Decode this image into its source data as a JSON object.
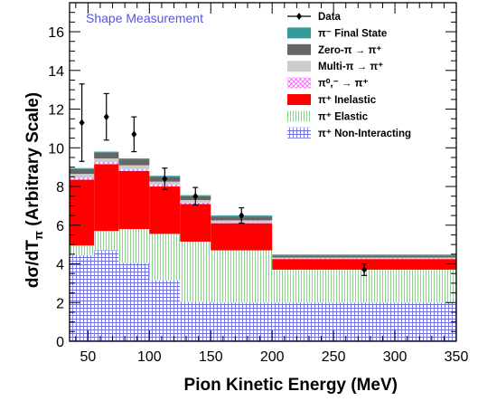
{
  "chart_data": {
    "type": "bar",
    "title": "Shape Measurement",
    "xlabel": "Pion Kinetic Energy (MeV)",
    "ylabel": "dσ/dT",
    "ylabel_sub": "π",
    "ylabel_suffix": " (Arbitrary Scale)",
    "xlim": [
      35,
      350
    ],
    "ylim": [
      0,
      17.5
    ],
    "xticks": [
      50,
      100,
      150,
      200,
      250,
      300,
      350
    ],
    "yticks": [
      0,
      2,
      4,
      6,
      8,
      10,
      12,
      14,
      16
    ],
    "bin_edges": [
      35,
      55,
      75,
      100,
      125,
      150,
      200,
      350
    ],
    "stack": [
      {
        "id": "nonint",
        "name": "π⁺ Non-Interacting",
        "color": "#8080e0",
        "pattern": "grid",
        "values": [
          4.45,
          4.7,
          4.05,
          3.15,
          2.05,
          2.0,
          2.0
        ]
      },
      {
        "id": "elastic",
        "name": "π⁺ Elastic",
        "color": "#66cc66",
        "pattern": "vlines",
        "values": [
          0.5,
          1.0,
          1.75,
          2.4,
          3.1,
          2.7,
          1.7
        ]
      },
      {
        "id": "inelastic",
        "name": "π⁺ Inelastic",
        "color": "#ff0000",
        "pattern": "solid",
        "values": [
          3.4,
          3.45,
          3.0,
          2.45,
          1.95,
          1.4,
          0.55
        ]
      },
      {
        "id": "pi0",
        "name": "π⁰,⁻ → π⁺",
        "color": "#ff66ff",
        "pattern": "crosshatch",
        "values": [
          0.1,
          0.1,
          0.1,
          0.1,
          0.1,
          0.05,
          0.03
        ]
      },
      {
        "id": "multi",
        "name": "Multi-π → π⁺",
        "color": "#cccccc",
        "pattern": "solid",
        "values": [
          0.2,
          0.2,
          0.2,
          0.15,
          0.1,
          0.1,
          0.05
        ]
      },
      {
        "id": "zero",
        "name": "Zero-π → π⁺",
        "color": "#666666",
        "pattern": "solid",
        "values": [
          0.25,
          0.3,
          0.3,
          0.25,
          0.2,
          0.2,
          0.1
        ]
      },
      {
        "id": "final",
        "name": "π⁻ Final State",
        "color": "#339999",
        "pattern": "solid",
        "values": [
          0.05,
          0.05,
          0.05,
          0.05,
          0.05,
          0.05,
          0.05
        ]
      }
    ],
    "data": {
      "name": "Data",
      "x": [
        45,
        65,
        87.5,
        112.5,
        137.5,
        175,
        275
      ],
      "y": [
        11.3,
        11.6,
        10.7,
        8.4,
        7.5,
        6.5,
        3.7
      ],
      "yerr": [
        2.0,
        1.2,
        0.9,
        0.55,
        0.45,
        0.4,
        0.3
      ]
    },
    "legend_order": [
      "data",
      "final",
      "zero",
      "multi",
      "pi0",
      "inelastic",
      "elastic",
      "nonint"
    ],
    "legend_placement": "top-right"
  }
}
